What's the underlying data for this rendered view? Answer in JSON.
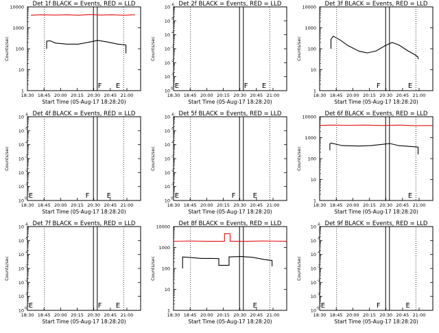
{
  "figure": {
    "xtick_labels": [
      "18:30",
      "18:45",
      "20:00",
      "20:15",
      "20:30",
      "20:45",
      "21:00"
    ],
    "xlabel": "Start Time (05-Aug-17 18:28:20)",
    "ylabel": "Counts/sec"
  },
  "chart_data": [
    {
      "type": "line",
      "title": "Det 1f BLACK = Events, RED = LLD",
      "log_y": true,
      "y_ticks": [
        "1",
        "10",
        "100",
        "1000",
        "10000"
      ],
      "tick_exponents": [
        0,
        1,
        2,
        3,
        4
      ],
      "series": [
        {
          "name": "LLD",
          "color": "#e01010",
          "points": [
            [
              0.03,
              3.6
            ],
            [
              0.12,
              3.62
            ],
            [
              0.25,
              3.61
            ],
            [
              0.35,
              3.62
            ],
            [
              0.45,
              3.6
            ],
            [
              0.55,
              3.63
            ],
            [
              0.65,
              3.61
            ],
            [
              0.75,
              3.62
            ],
            [
              0.85,
              3.6
            ],
            [
              0.95,
              3.62
            ]
          ]
        },
        {
          "name": "Events",
          "color": "#000000",
          "points": [
            [
              0.17,
              2.0
            ],
            [
              0.17,
              2.36
            ],
            [
              0.2,
              2.38
            ],
            [
              0.25,
              2.27
            ],
            [
              0.35,
              2.22
            ],
            [
              0.45,
              2.22
            ],
            [
              0.55,
              2.32
            ],
            [
              0.62,
              2.4
            ],
            [
              0.7,
              2.33
            ],
            [
              0.8,
              2.22
            ],
            [
              0.87,
              2.18
            ],
            [
              0.87,
              1.78
            ]
          ]
        }
      ],
      "markers": [
        {
          "label": "F",
          "x": 0.64
        },
        {
          "label": "E",
          "x": 0.8
        }
      ]
    },
    {
      "type": "line",
      "title": "Det 2f BLACK = Events, RED = LLD",
      "log_y": true,
      "y_ticks": [
        "10",
        "10",
        "10",
        "10",
        "10",
        "10",
        "10"
      ],
      "tick_exponents": [
        "0",
        "-1",
        "-2",
        "-3",
        "-4",
        "-5",
        "-6"
      ],
      "series": [],
      "markers": [
        {
          "label": "E",
          "x": 0.03
        },
        {
          "label": "F",
          "x": 0.64
        },
        {
          "label": "E",
          "x": 0.8
        }
      ]
    },
    {
      "type": "line",
      "title": "Det 3f BLACK = Events, RED = LLD",
      "log_y": true,
      "y_ticks": [
        "1",
        "10",
        "100",
        "1000",
        "10000"
      ],
      "tick_exponents": [
        0,
        1,
        2,
        3,
        4
      ],
      "series": [
        {
          "name": "Events",
          "color": "#000000",
          "points": [
            [
              0.1,
              2.0
            ],
            [
              0.1,
              2.45
            ],
            [
              0.12,
              2.6
            ],
            [
              0.18,
              2.42
            ],
            [
              0.25,
              2.15
            ],
            [
              0.35,
              1.88
            ],
            [
              0.42,
              1.8
            ],
            [
              0.5,
              1.9
            ],
            [
              0.58,
              2.15
            ],
            [
              0.64,
              2.3
            ],
            [
              0.7,
              2.18
            ],
            [
              0.78,
              1.9
            ],
            [
              0.84,
              1.72
            ],
            [
              0.87,
              1.6
            ],
            [
              0.87,
              1.5
            ]
          ]
        }
      ],
      "markers": [
        {
          "label": "F",
          "x": 0.52
        },
        {
          "label": "E",
          "x": 0.8
        }
      ]
    },
    {
      "type": "line",
      "title": "Det 4f BLACK = Events, RED = LLD",
      "log_y": true,
      "y_ticks": [
        "10",
        "10",
        "10",
        "10",
        "10",
        "10",
        "10"
      ],
      "tick_exponents": [
        "0",
        "-1",
        "-2",
        "-3",
        "-4",
        "-5",
        "-6"
      ],
      "series": [],
      "markers": [
        {
          "label": "E",
          "x": 0.03
        },
        {
          "label": "F",
          "x": 0.53
        },
        {
          "label": "E",
          "x": 0.72
        }
      ]
    },
    {
      "type": "line",
      "title": "Det 5f BLACK = Events, RED = LLD",
      "log_y": true,
      "y_ticks": [
        "10",
        "10",
        "10",
        "10",
        "10",
        "10",
        "10"
      ],
      "tick_exponents": [
        "0",
        "-1",
        "-2",
        "-3",
        "-4",
        "-5",
        "-6"
      ],
      "series": [],
      "markers": [
        {
          "label": "E",
          "x": 0.03
        },
        {
          "label": "F",
          "x": 0.53
        },
        {
          "label": "E",
          "x": 0.72
        }
      ]
    },
    {
      "type": "line",
      "title": "Det 6f BLACK = Events, RED = LLD",
      "log_y": true,
      "y_ticks": [
        "1",
        "10",
        "100",
        "1000",
        "10000"
      ],
      "tick_exponents": [
        0,
        1,
        2,
        3,
        4
      ],
      "series": [
        {
          "name": "LLD",
          "color": "#e01010",
          "points": [
            [
              0.0,
              3.58
            ],
            [
              0.1,
              3.6
            ],
            [
              0.25,
              3.59
            ],
            [
              0.4,
              3.6
            ],
            [
              0.55,
              3.58
            ],
            [
              0.7,
              3.6
            ],
            [
              0.85,
              3.57
            ],
            [
              0.95,
              3.58
            ],
            [
              1.0,
              3.58
            ]
          ]
        },
        {
          "name": "Events",
          "color": "#000000",
          "points": [
            [
              0.09,
              2.4
            ],
            [
              0.09,
              2.7
            ],
            [
              0.1,
              2.74
            ],
            [
              0.2,
              2.62
            ],
            [
              0.35,
              2.6
            ],
            [
              0.45,
              2.62
            ],
            [
              0.55,
              2.68
            ],
            [
              0.62,
              2.72
            ],
            [
              0.7,
              2.62
            ],
            [
              0.8,
              2.58
            ],
            [
              0.87,
              2.55
            ],
            [
              0.87,
              2.2
            ]
          ]
        }
      ],
      "markers": [
        {
          "label": "E",
          "x": 0.8
        }
      ]
    },
    {
      "type": "line",
      "title": "Det 7f BLACK = Events, RED = LLD",
      "log_y": true,
      "y_ticks": [
        "10",
        "10",
        "10",
        "10",
        "10",
        "10",
        "10"
      ],
      "tick_exponents": [
        "0",
        "-1",
        "-2",
        "-3",
        "-4",
        "-5",
        "-6"
      ],
      "series": [],
      "markers": [
        {
          "label": "E",
          "x": 0.03
        },
        {
          "label": "F",
          "x": 0.64
        },
        {
          "label": "E",
          "x": 0.8
        }
      ]
    },
    {
      "type": "line",
      "title": "Det 8f BLACK = Events, RED = LLD",
      "log_y": true,
      "y_ticks": [
        "1",
        "10",
        "100",
        "1000",
        "10000"
      ],
      "tick_exponents": [
        0,
        1,
        2,
        3,
        4
      ],
      "series": [
        {
          "name": "LLD",
          "color": "#e01010",
          "points": [
            [
              0.0,
              3.3
            ],
            [
              0.15,
              3.31
            ],
            [
              0.3,
              3.3
            ],
            [
              0.4,
              3.3
            ],
            [
              0.45,
              3.3
            ],
            [
              0.45,
              3.66
            ],
            [
              0.5,
              3.66
            ],
            [
              0.5,
              3.3
            ],
            [
              0.65,
              3.3
            ],
            [
              0.8,
              3.31
            ],
            [
              1.0,
              3.3
            ]
          ]
        },
        {
          "name": "Events",
          "color": "#000000",
          "points": [
            [
              0.08,
              2.0
            ],
            [
              0.08,
              2.55
            ],
            [
              0.15,
              2.52
            ],
            [
              0.25,
              2.48
            ],
            [
              0.35,
              2.48
            ],
            [
              0.4,
              2.47
            ],
            [
              0.4,
              2.15
            ],
            [
              0.49,
              2.15
            ],
            [
              0.49,
              2.55
            ],
            [
              0.6,
              2.57
            ],
            [
              0.7,
              2.53
            ],
            [
              0.8,
              2.43
            ],
            [
              0.87,
              2.38
            ],
            [
              0.87,
              2.1
            ]
          ]
        }
      ],
      "markers": [
        {
          "label": "E",
          "x": 0.72
        }
      ]
    },
    {
      "type": "line",
      "title": "Det 9f BLACK = Events, RED = LLD",
      "log_y": true,
      "y_ticks": [
        "10",
        "10",
        "10",
        "10",
        "10",
        "10",
        "10"
      ],
      "tick_exponents": [
        "0",
        "-1",
        "-2",
        "-3",
        "-4",
        "-5",
        "-6"
      ],
      "series": [],
      "markers": [
        {
          "label": "E",
          "x": 0.03
        },
        {
          "label": "F",
          "x": 0.52
        },
        {
          "label": "E",
          "x": 0.78
        }
      ]
    }
  ]
}
